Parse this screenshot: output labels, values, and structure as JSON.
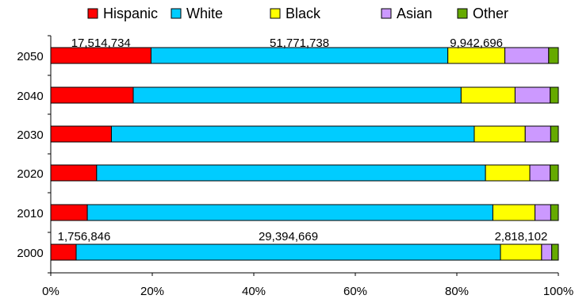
{
  "chart_data": {
    "type": "bar",
    "orientation": "horizontal",
    "stacking": "percent",
    "categories": [
      "2000",
      "2010",
      "2020",
      "2030",
      "2040",
      "2050"
    ],
    "series": [
      {
        "name": "Hispanic",
        "color": "#ff0000",
        "values": [
          5.0,
          7.2,
          9.0,
          11.9,
          16.2,
          19.7
        ]
      },
      {
        "name": "White",
        "color": "#00ccff",
        "values": [
          83.6,
          79.9,
          76.3,
          71.2,
          64.4,
          58.3
        ]
      },
      {
        "name": "Black",
        "color": "#ffff00",
        "values": [
          8.1,
          8.3,
          8.7,
          10.0,
          10.6,
          11.2
        ]
      },
      {
        "name": "Asian",
        "color": "#cc99ff",
        "values": [
          2.0,
          3.1,
          4.0,
          5.0,
          6.9,
          8.6
        ]
      },
      {
        "name": "Other",
        "color": "#66aa00",
        "values": [
          1.3,
          1.5,
          1.6,
          1.5,
          1.6,
          1.9
        ]
      }
    ],
    "xlim": [
      0,
      100
    ],
    "xticks": [
      "0%",
      "20%",
      "40%",
      "60%",
      "80%",
      "100%"
    ],
    "legend_position": "top",
    "annotations": [
      {
        "category": "2050",
        "series": "Hispanic",
        "text": "17,514,734"
      },
      {
        "category": "2050",
        "series": "White",
        "text": "51,771,738"
      },
      {
        "category": "2050",
        "series": "Black",
        "text": "9,942,696"
      },
      {
        "category": "2000",
        "series": "Hispanic",
        "text": "1,756,846"
      },
      {
        "category": "2000",
        "series": "White",
        "text": "29,394,669"
      },
      {
        "category": "2000",
        "series": "Black",
        "text": "2,818,102"
      }
    ]
  }
}
